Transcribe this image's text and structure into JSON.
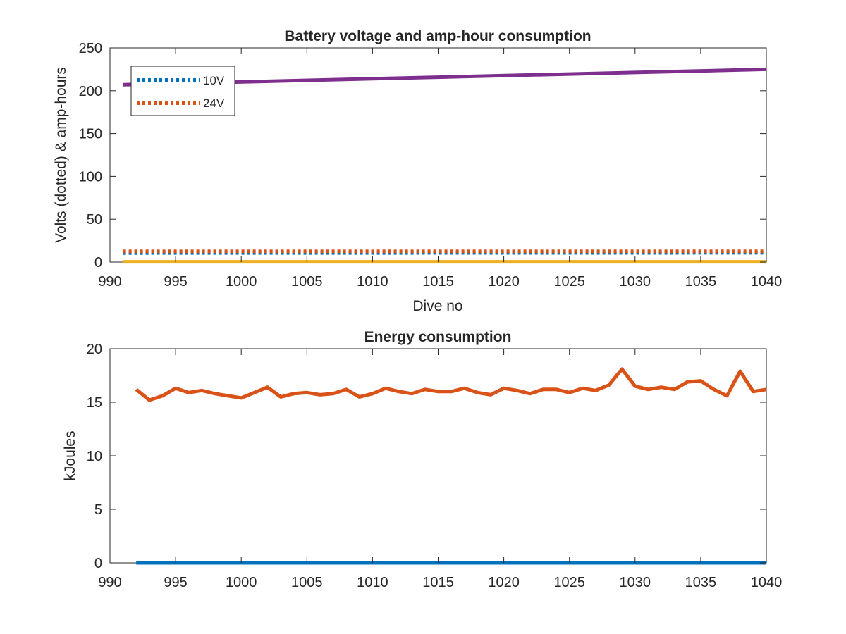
{
  "chart_data": [
    {
      "type": "line",
      "title": "Battery voltage and amp-hour consumption",
      "xlabel": "Dive no",
      "ylabel": "Volts (dotted) & amp-hours",
      "xlim": [
        990,
        1040
      ],
      "ylim": [
        0,
        250
      ],
      "xticks": [
        990,
        995,
        1000,
        1005,
        1010,
        1015,
        1020,
        1025,
        1030,
        1035,
        1040
      ],
      "yticks": [
        0,
        50,
        100,
        150,
        200,
        250
      ],
      "grid": false,
      "legend_position": "top-left",
      "series": [
        {
          "name": "10V",
          "style": "dotted",
          "color": "#0072BD",
          "x": [
            991,
            1040
          ],
          "y": [
            10.5,
            10.8
          ]
        },
        {
          "name": "24V",
          "style": "dotted",
          "color": "#D95319",
          "x": [
            991,
            1040
          ],
          "y": [
            12.5,
            12.5
          ]
        },
        {
          "style": "solid",
          "color": "#EDB120",
          "x": [
            991,
            1040
          ],
          "y": [
            0.3,
            0.3
          ]
        },
        {
          "style": "solid",
          "color": "#7E2F8E",
          "x": [
            991,
            1040
          ],
          "y": [
            207,
            225
          ]
        }
      ]
    },
    {
      "type": "line",
      "title": "Energy consumption",
      "xlabel": "",
      "ylabel": "kJoules",
      "xlim": [
        990,
        1040
      ],
      "ylim": [
        0,
        20
      ],
      "xticks": [
        990,
        995,
        1000,
        1005,
        1010,
        1015,
        1020,
        1025,
        1030,
        1035,
        1040
      ],
      "yticks": [
        0,
        5,
        10,
        15,
        20
      ],
      "grid": false,
      "series": [
        {
          "style": "solid",
          "color": "#0072BD",
          "x": [
            992,
            1040
          ],
          "y": [
            0,
            0
          ]
        },
        {
          "style": "solid",
          "color": "#D95319",
          "x": [
            992,
            993,
            994,
            995,
            996,
            997,
            998,
            999,
            1000,
            1001,
            1002,
            1003,
            1004,
            1005,
            1006,
            1007,
            1008,
            1009,
            1010,
            1011,
            1012,
            1013,
            1014,
            1015,
            1016,
            1017,
            1018,
            1019,
            1020,
            1021,
            1022,
            1023,
            1024,
            1025,
            1026,
            1027,
            1028,
            1029,
            1030,
            1031,
            1032,
            1033,
            1034,
            1035,
            1036,
            1037,
            1038,
            1039,
            1040
          ],
          "y": [
            16.2,
            15.2,
            15.6,
            16.3,
            15.9,
            16.1,
            15.8,
            15.6,
            15.4,
            15.9,
            16.4,
            15.5,
            15.8,
            15.9,
            15.7,
            15.8,
            16.2,
            15.5,
            15.8,
            16.3,
            16.0,
            15.8,
            16.2,
            16.0,
            16.0,
            16.3,
            15.9,
            15.7,
            16.3,
            16.1,
            15.8,
            16.2,
            16.2,
            15.9,
            16.3,
            16.1,
            16.6,
            18.1,
            16.5,
            16.2,
            16.4,
            16.2,
            16.9,
            17.0,
            16.2,
            15.6,
            17.9,
            16.0,
            16.2
          ]
        }
      ]
    }
  ]
}
